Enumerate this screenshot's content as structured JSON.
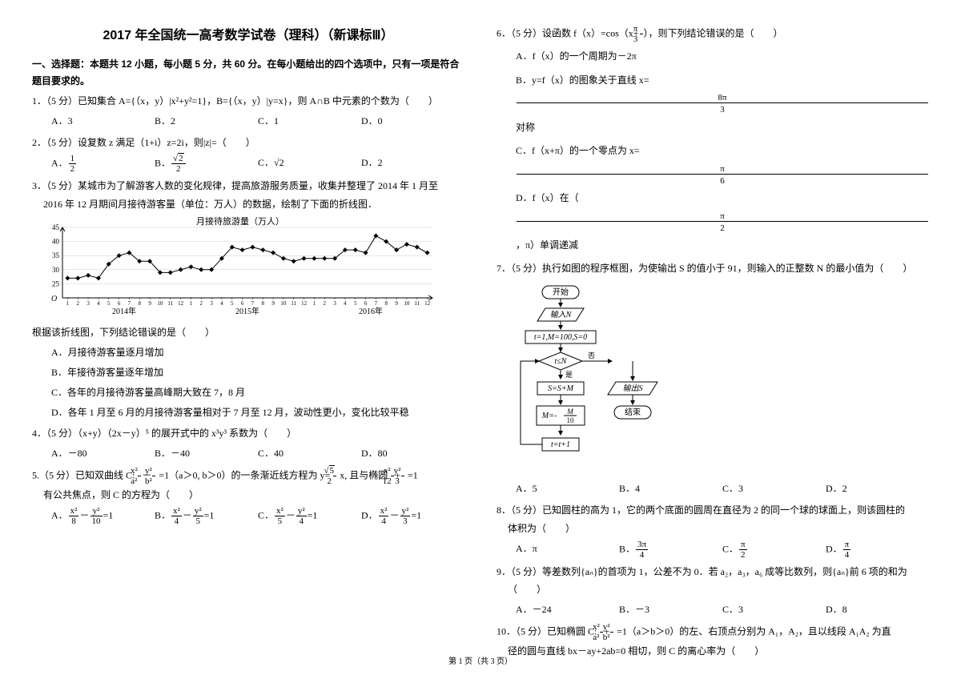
{
  "title": "2017 年全国统一高考数学试卷（理科）（新课标Ⅲ）",
  "section1_head": "一、选择题：本题共 12 小题，每小题 5 分，共 60 分。在每小题给出的四个选项中，只有一项是符合题目要求的。",
  "q1": {
    "stem": "1．（5 分）已知集合 A={（x，y）|x²+y²=1}，B={（x，y）|y=x}，则 A∩B 中元素的个数为（　　）",
    "A": "A．3",
    "B": "B．2",
    "C": "C．1",
    "D": "D．0"
  },
  "q2": {
    "stem": "2．（5 分）设复数 z 满足（1+i）z=2i，则|z|=（　　）",
    "A": "A．",
    "B": "B．",
    "C": "C．√2",
    "D": "D．2"
  },
  "q3": {
    "stem": "3．（5 分）某城市为了解游客人数的变化规律，提高旅游服务质量，收集并整理了 2014 年 1 月至",
    "stem2": "2016 年 12 月期间月接待游客量（单位：万人）的数据，绘制了下面的折线图．",
    "after": "根据该折线图，下列结论错误的是（　　）",
    "A": "A．月接待游客量逐月增加",
    "B": "B．年接待游客量逐年增加",
    "C": "C．各年的月接待游客量高峰期大致在 7，8 月",
    "D": "D．各年 1 月至 6 月的月接待游客量相对于 7 月至 12 月，波动性更小，变化比较平稳"
  },
  "q4": {
    "stem": "4．（5 分）（x+y）（2x－y）⁵ 的展开式中的 x³y³ 系数为（　　）",
    "A": "A．－80",
    "B": "B．－40",
    "C": "C．40",
    "D": "D．80"
  },
  "q5": {
    "stem_a": "5.（5 分）已知双曲线 C:",
    "stem_b": "=1（a＞0, b＞0）的一条渐近线方程为 y=",
    "stem_c": "x, 且与椭圆",
    "stem_d": "=1",
    "line2": "有公共焦点，则 C 的方程为（　　）",
    "A": "A．",
    "B": "B．",
    "C": "C．",
    "D": "D．"
  },
  "q6": {
    "stem_a": "6．（5 分）设函数 f（x）=cos（x+",
    "stem_b": "），则下列结论错误的是（　　）",
    "A": "A．f（x）的一个周期为－2π",
    "B_a": "B．y=f（x）的图象关于直线 x=",
    "B_b": "对称",
    "C_a": "C．f（x+π）的一个零点为 x=",
    "D_a": "D．f（x）在（",
    "D_b": "，π）单调递减"
  },
  "q7": {
    "stem": "7．（5 分）执行如图的程序框图，为使输出 S 的值小于 91，则输入的正整数 N 的最小值为（　　）",
    "A": "A．5",
    "B": "B．4",
    "C": "C．3",
    "D": "D．2"
  },
  "q8": {
    "stem": "8．（5 分）已知圆柱的高为 1，它的两个底面的圆周在直径为 2 的同一个球的球面上，则该圆柱的",
    "stem2": "体积为（　　）",
    "A": "A．π",
    "B": "B．",
    "C": "C．",
    "D": "D．"
  },
  "q9": {
    "stem": "9．（5 分）等差数列{aₙ}的首项为 1，公差不为 0．若 a₂，a₃，a₆ 成等比数列，则{aₙ}前 6 项的和为",
    "stem2": "（　　）",
    "A": "A．－24",
    "B": "B．－3",
    "C": "C．3",
    "D": "D．8"
  },
  "q10": {
    "stem_a": "10．（5 分）已知椭圆 C:",
    "stem_b": "=1（a＞b＞0）的左、右顶点分别为 A₁，A₂，且以线段 A₁A₂ 为直",
    "line2": "径的圆与直线 bx－ay+2ab=0 相切，则 C 的离心率为（　　）"
  },
  "footer": "第 1 页（共 3 页）",
  "chart": {
    "title": "月接待旅游量（万人）",
    "ylabels": [
      "45",
      "40",
      "35",
      "30",
      "25"
    ],
    "xlabels": [
      "1",
      "2",
      "3",
      "4",
      "5",
      "6",
      "7",
      "8",
      "9",
      "10",
      "11",
      "12",
      "1",
      "2",
      "3",
      "4",
      "5",
      "6",
      "7",
      "8",
      "9",
      "10",
      "11",
      "12",
      "1",
      "2",
      "3",
      "4",
      "5",
      "6",
      "7",
      "8",
      "9",
      "10",
      "11",
      "12"
    ],
    "years": [
      "2014年",
      "2015年",
      "2016年"
    ],
    "values": [
      27,
      27,
      28,
      27,
      32,
      35,
      36,
      33,
      33,
      29,
      29,
      30,
      31,
      30,
      30,
      34,
      38,
      37,
      38,
      37,
      36,
      34,
      33,
      34,
      34,
      34,
      34,
      37,
      37,
      36,
      42,
      40,
      37,
      39,
      38,
      36
    ],
    "ymin": 20,
    "ymax": 45,
    "line_color": "#000",
    "grid_color": "#ccc",
    "marker": "diamond",
    "marker_size": 3
  },
  "flow": {
    "n1": "开始",
    "n2": "输入N",
    "n3": "t=1,M=100,S=0",
    "n4": "t≤N",
    "n5": "S=S+M",
    "n6": "M=-",
    "n6b": "M",
    "n6c": "10",
    "n7": "t=t+1",
    "n8": "输出S",
    "n9": "结束",
    "yes": "是",
    "no": "否"
  }
}
